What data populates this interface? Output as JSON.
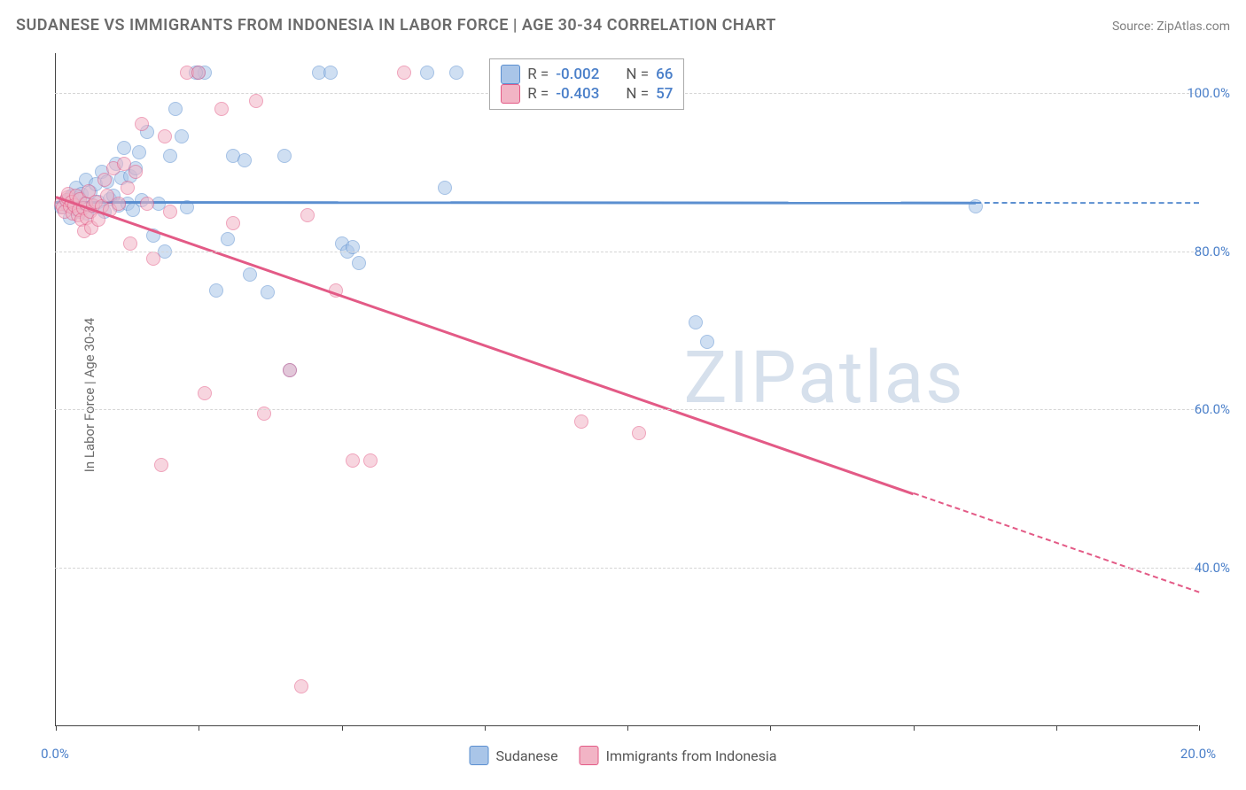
{
  "title": "SUDANESE VS IMMIGRANTS FROM INDONESIA IN LABOR FORCE | AGE 30-34 CORRELATION CHART",
  "source": "Source: ZipAtlas.com",
  "y_axis_label": "In Labor Force | Age 30-34",
  "watermark": "ZIPatlas",
  "chart": {
    "type": "scatter",
    "background_color": "#ffffff",
    "grid_color": "#d5d5d5",
    "axis_color": "#444444",
    "xlim": [
      0,
      20
    ],
    "ylim": [
      20,
      105
    ],
    "x_ticks": [
      0,
      2.5,
      5,
      7.5,
      10,
      12.5,
      15,
      17.5,
      20
    ],
    "x_tick_labels": {
      "0": "0.0%",
      "20": "20.0%"
    },
    "y_ticks": [
      40,
      60,
      80,
      100
    ],
    "y_tick_labels": {
      "40": "40.0%",
      "60": "60.0%",
      "80": "80.0%",
      "100": "100.0%"
    },
    "series": [
      {
        "name": "Sudanese",
        "color_fill": "#a9c5e8",
        "color_stroke": "#5b8fd0",
        "marker_size": 16,
        "fill_opacity": 0.55,
        "R": "-0.002",
        "N": "66",
        "trendline": {
          "y_start": 86.3,
          "y_end": 86.2,
          "solid_to_x": 16.1
        },
        "points": [
          [
            0.1,
            85.5
          ],
          [
            0.15,
            86.2
          ],
          [
            0.2,
            85.8
          ],
          [
            0.22,
            86.5
          ],
          [
            0.25,
            84.2
          ],
          [
            0.28,
            87.0
          ],
          [
            0.3,
            86.0
          ],
          [
            0.32,
            85.3
          ],
          [
            0.35,
            88.0
          ],
          [
            0.4,
            86.8
          ],
          [
            0.42,
            85.0
          ],
          [
            0.45,
            87.2
          ],
          [
            0.5,
            86.0
          ],
          [
            0.52,
            89.0
          ],
          [
            0.55,
            84.8
          ],
          [
            0.6,
            87.4
          ],
          [
            0.65,
            85.6
          ],
          [
            0.7,
            88.5
          ],
          [
            0.75,
            86.2
          ],
          [
            0.8,
            90.0
          ],
          [
            0.85,
            85.0
          ],
          [
            0.9,
            88.8
          ],
          [
            0.95,
            86.5
          ],
          [
            1.0,
            87.0
          ],
          [
            1.05,
            91.0
          ],
          [
            1.1,
            85.8
          ],
          [
            1.15,
            89.2
          ],
          [
            1.2,
            93.0
          ],
          [
            1.25,
            86.0
          ],
          [
            1.3,
            89.5
          ],
          [
            1.35,
            85.2
          ],
          [
            1.4,
            90.5
          ],
          [
            1.45,
            92.5
          ],
          [
            1.5,
            86.4
          ],
          [
            1.6,
            95.0
          ],
          [
            1.7,
            82.0
          ],
          [
            1.8,
            86.0
          ],
          [
            1.9,
            80.0
          ],
          [
            2.0,
            92.0
          ],
          [
            2.1,
            98.0
          ],
          [
            2.2,
            94.5
          ],
          [
            2.3,
            85.5
          ],
          [
            2.5,
            102.5
          ],
          [
            2.6,
            102.5
          ],
          [
            2.8,
            75.0
          ],
          [
            3.0,
            81.5
          ],
          [
            3.1,
            92.0
          ],
          [
            3.3,
            91.5
          ],
          [
            3.4,
            77.0
          ],
          [
            3.7,
            74.8
          ],
          [
            4.0,
            92.0
          ],
          [
            4.1,
            65.0
          ],
          [
            4.6,
            102.5
          ],
          [
            4.8,
            102.5
          ],
          [
            5.0,
            81.0
          ],
          [
            5.1,
            80.0
          ],
          [
            5.2,
            80.5
          ],
          [
            5.3,
            78.5
          ],
          [
            6.5,
            102.5
          ],
          [
            6.8,
            88.0
          ],
          [
            7.0,
            102.5
          ],
          [
            8.5,
            102.5
          ],
          [
            11.2,
            71.0
          ],
          [
            11.4,
            68.5
          ],
          [
            16.1,
            85.7
          ],
          [
            2.45,
            102.5
          ]
        ]
      },
      {
        "name": "Immigants from Indonesia",
        "label": "Immigrants from Indonesia",
        "color_fill": "#f2b4c5",
        "color_stroke": "#e35a86",
        "marker_size": 16,
        "fill_opacity": 0.55,
        "R": "-0.403",
        "N": "57",
        "trendline": {
          "y_start": 87.0,
          "y_end": 37.0,
          "solid_to_x": 15.0
        },
        "points": [
          [
            0.1,
            86.0
          ],
          [
            0.12,
            85.5
          ],
          [
            0.15,
            85.0
          ],
          [
            0.18,
            86.4
          ],
          [
            0.2,
            86.8
          ],
          [
            0.22,
            87.2
          ],
          [
            0.25,
            85.6
          ],
          [
            0.28,
            86.2
          ],
          [
            0.3,
            84.8
          ],
          [
            0.32,
            85.8
          ],
          [
            0.35,
            87.0
          ],
          [
            0.38,
            84.5
          ],
          [
            0.4,
            85.2
          ],
          [
            0.42,
            86.6
          ],
          [
            0.45,
            84.0
          ],
          [
            0.48,
            85.4
          ],
          [
            0.5,
            82.5
          ],
          [
            0.52,
            86.0
          ],
          [
            0.55,
            84.2
          ],
          [
            0.58,
            87.5
          ],
          [
            0.6,
            85.0
          ],
          [
            0.62,
            83.0
          ],
          [
            0.65,
            85.8
          ],
          [
            0.7,
            86.2
          ],
          [
            0.75,
            84.0
          ],
          [
            0.8,
            85.6
          ],
          [
            0.85,
            89.0
          ],
          [
            0.9,
            87.0
          ],
          [
            0.95,
            85.2
          ],
          [
            1.0,
            90.5
          ],
          [
            1.1,
            86.0
          ],
          [
            1.2,
            91.0
          ],
          [
            1.25,
            88.0
          ],
          [
            1.3,
            81.0
          ],
          [
            1.4,
            90.0
          ],
          [
            1.5,
            96.0
          ],
          [
            1.6,
            86.0
          ],
          [
            1.7,
            79.0
          ],
          [
            1.85,
            53.0
          ],
          [
            1.9,
            94.5
          ],
          [
            2.0,
            85.0
          ],
          [
            2.3,
            102.5
          ],
          [
            2.5,
            102.5
          ],
          [
            2.6,
            62.0
          ],
          [
            2.9,
            98.0
          ],
          [
            3.1,
            83.5
          ],
          [
            3.5,
            99.0
          ],
          [
            3.65,
            59.5
          ],
          [
            4.1,
            65.0
          ],
          [
            4.3,
            25.0
          ],
          [
            4.4,
            84.5
          ],
          [
            4.9,
            75.0
          ],
          [
            5.2,
            53.5
          ],
          [
            5.5,
            53.5
          ],
          [
            6.1,
            102.5
          ],
          [
            9.2,
            58.5
          ],
          [
            10.2,
            57.0
          ]
        ]
      }
    ]
  },
  "legend_top": {
    "rows": [
      {
        "swatch_fill": "#a9c5e8",
        "swatch_stroke": "#5b8fd0",
        "R_label": "R =",
        "R": "-0.002",
        "N_label": "N =",
        "N": "66"
      },
      {
        "swatch_fill": "#f2b4c5",
        "swatch_stroke": "#e35a86",
        "R_label": "R =",
        "R": "-0.403",
        "N_label": "N =",
        "N": "57"
      }
    ]
  },
  "legend_bottom": [
    {
      "swatch_fill": "#a9c5e8",
      "swatch_stroke": "#5b8fd0",
      "label": "Sudanese"
    },
    {
      "swatch_fill": "#f2b4c5",
      "swatch_stroke": "#e35a86",
      "label": "Immigrants from Indonesia"
    }
  ]
}
